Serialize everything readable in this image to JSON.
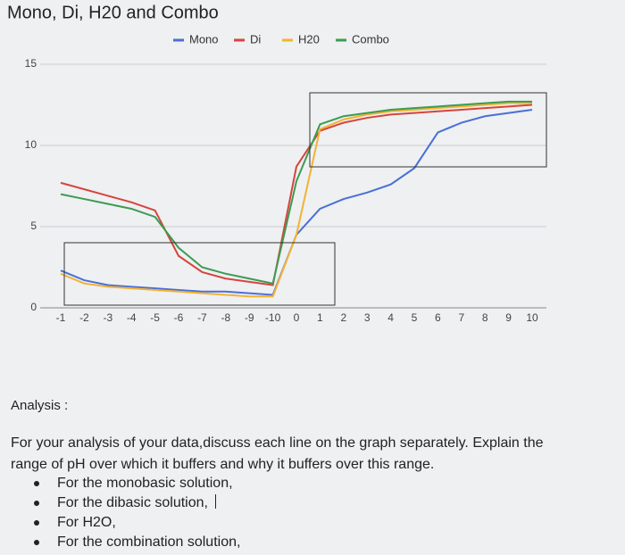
{
  "chart_data": {
    "type": "line",
    "title": "Mono, Di, H20 and Combo",
    "categories": [
      "-1",
      "-2",
      "-3",
      "-4",
      "-5",
      "-6",
      "-7",
      "-8",
      "-9",
      "-10",
      "0",
      "1",
      "2",
      "3",
      "4",
      "5",
      "6",
      "7",
      "8",
      "9",
      "10"
    ],
    "series": [
      {
        "name": "Mono",
        "color": "#4a6fd6",
        "values": [
          2.3,
          1.7,
          1.4,
          1.3,
          1.2,
          1.1,
          1.0,
          1.0,
          0.9,
          0.8,
          4.5,
          6.1,
          6.7,
          7.1,
          7.6,
          8.6,
          10.8,
          11.4,
          11.8,
          12.0,
          12.2
        ]
      },
      {
        "name": "Di",
        "color": "#d6453d",
        "values": [
          7.7,
          7.3,
          6.9,
          6.5,
          6.0,
          3.2,
          2.2,
          1.8,
          1.6,
          1.4,
          8.7,
          10.9,
          11.4,
          11.7,
          11.9,
          12.0,
          12.1,
          12.2,
          12.3,
          12.4,
          12.5
        ]
      },
      {
        "name": "H20",
        "color": "#f2b233",
        "values": [
          2.1,
          1.5,
          1.3,
          1.2,
          1.1,
          1.0,
          0.9,
          0.8,
          0.7,
          0.7,
          4.5,
          11.0,
          11.6,
          11.9,
          12.1,
          12.2,
          12.3,
          12.4,
          12.5,
          12.6,
          12.6
        ]
      },
      {
        "name": "Combo",
        "color": "#3d9b52",
        "values": [
          7.0,
          6.7,
          6.4,
          6.1,
          5.6,
          3.7,
          2.5,
          2.1,
          1.8,
          1.5,
          7.8,
          11.3,
          11.8,
          12.0,
          12.2,
          12.3,
          12.4,
          12.5,
          12.6,
          12.7,
          12.7
        ]
      }
    ],
    "ylim": [
      0,
      15
    ],
    "yticks": [
      0,
      5,
      10,
      15
    ],
    "grid": true,
    "legend": "top"
  },
  "analysis": {
    "label": "Analysis :",
    "prompt": "For your analysis of your data,discuss each line on the graph separately. Explain the range of pH over which it buffers and why it buffers over this range.",
    "bullets": [
      "For the monobasic solution,",
      "For the dibasic solution,",
      "For H2O,",
      "For the combination solution,"
    ]
  }
}
